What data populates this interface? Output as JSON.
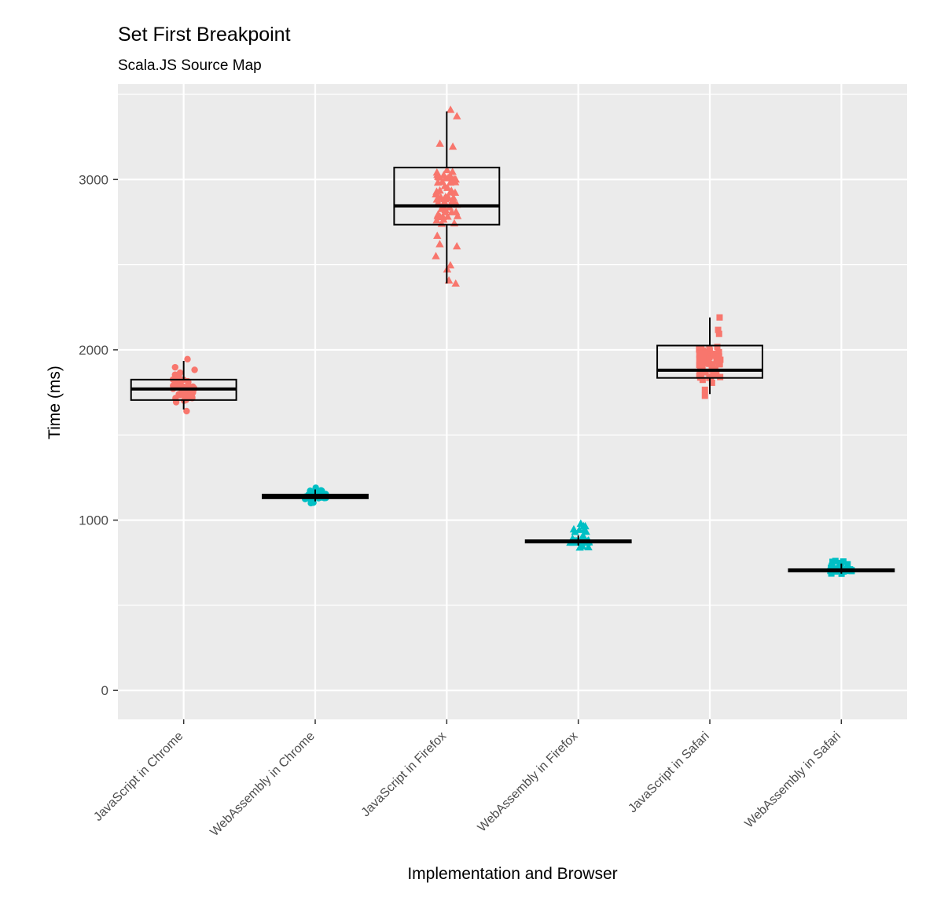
{
  "chart_data": {
    "type": "box",
    "title": "Set First Breakpoint",
    "subtitle": "Scala.JS Source Map",
    "xlabel": "Implementation and Browser",
    "ylabel": "Time (ms)",
    "ylim": [
      -170,
      3560
    ],
    "yticks": [
      0,
      1000,
      2000,
      3000
    ],
    "categories": [
      "JavaScript in Chrome",
      "WebAssembly in Chrome",
      "JavaScript in Firefox",
      "WebAssembly in Firefox",
      "JavaScript in Safari",
      "WebAssembly in Safari"
    ],
    "boxes": [
      {
        "category": "JavaScript in Chrome",
        "min": 1650,
        "q1": 1705,
        "median": 1770,
        "q3": 1825,
        "max": 1935,
        "points_min": 1640,
        "points_max": 1945,
        "n": 60,
        "shape": "circle",
        "color": "#F8766D"
      },
      {
        "category": "WebAssembly in Chrome",
        "min": 1110,
        "q1": 1128,
        "median": 1140,
        "q3": 1150,
        "max": 1180,
        "points_min": 1100,
        "points_max": 1190,
        "n": 50,
        "shape": "circle",
        "color": "#00BFC4"
      },
      {
        "category": "JavaScript in Firefox",
        "min": 2390,
        "q1": 2735,
        "median": 2845,
        "q3": 3070,
        "max": 3400,
        "points_min": 2390,
        "points_max": 3410,
        "n": 70,
        "shape": "triangle",
        "color": "#F8766D"
      },
      {
        "category": "WebAssembly in Firefox",
        "min": 850,
        "q1": 868,
        "median": 875,
        "q3": 882,
        "max": 910,
        "points_min": 840,
        "points_max": 980,
        "n": 45,
        "shape": "triangle",
        "color": "#00BFC4"
      },
      {
        "category": "JavaScript in Safari",
        "min": 1740,
        "q1": 1835,
        "median": 1880,
        "q3": 2025,
        "max": 2190,
        "points_min": 1730,
        "points_max": 2190,
        "n": 70,
        "shape": "square",
        "color": "#F8766D"
      },
      {
        "category": "WebAssembly in Safari",
        "min": 685,
        "q1": 698,
        "median": 705,
        "q3": 712,
        "max": 745,
        "points_min": 685,
        "points_max": 760,
        "n": 45,
        "shape": "square",
        "color": "#00BFC4"
      }
    ],
    "grid": true,
    "legend": "none",
    "panel_background": "#EBEBEB",
    "grid_color": "#FFFFFF"
  }
}
